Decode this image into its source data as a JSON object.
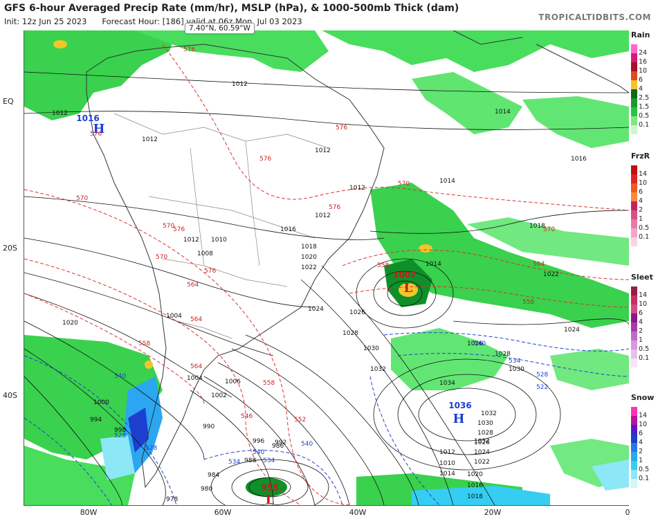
{
  "header": {
    "title": "GFS 6-hour Averaged Precip Rate (mm/hr), MSLP (hPa), & 1000-500mb Thick (dam)",
    "init": "Init: 12z Jun 25 2023",
    "forecast": "Forecast Hour: [186]  valid at 06z Mon, Jul 03 2023",
    "brand": "TROPICALTIDBITS.COM"
  },
  "cursor_tooltip": "7.40°N, 60.59°W",
  "axes": {
    "lat_labels": [
      "EQ",
      "20S",
      "40S"
    ],
    "lon_labels": [
      "80W",
      "60W",
      "40W",
      "20W",
      "0"
    ]
  },
  "pressure_centers": [
    {
      "type": "H",
      "value": "1016",
      "color": "#1a3fd6"
    },
    {
      "type": "L",
      "value": "1007",
      "color": "#d01515"
    },
    {
      "type": "H",
      "value": "1036",
      "color": "#1a3fd6"
    },
    {
      "type": "L",
      "value": "955",
      "color": "#d01515"
    }
  ],
  "isobar_labels": [
    "1012",
    "1012",
    "1012",
    "1012",
    "1012",
    "1012",
    "1012",
    "1014",
    "1014",
    "1014",
    "1016",
    "1016",
    "1018",
    "1018",
    "1020",
    "1020",
    "1022",
    "1022",
    "1024",
    "1024",
    "1026",
    "1026",
    "1028",
    "1028",
    "1030",
    "1030",
    "1032",
    "1032",
    "1034",
    "1004",
    "1008",
    "1010",
    "1004",
    "1002",
    "1006",
    "1000",
    "994",
    "990",
    "988",
    "986",
    "984",
    "980",
    "978",
    "996",
    "992",
    "998",
    "1010",
    "1012",
    "1014",
    "1016",
    "1018",
    "1020",
    "1022",
    "1024",
    "1026",
    "1028",
    "1030",
    "1032"
  ],
  "thickness_labels_red": [
    "576",
    "576",
    "576",
    "576",
    "576",
    "576",
    "570",
    "570",
    "570",
    "570",
    "570",
    "564",
    "564",
    "564",
    "564",
    "558",
    "558",
    "558",
    "558",
    "552",
    "546",
    "576"
  ],
  "thickness_labels_blue": [
    "540",
    "540",
    "540",
    "534",
    "534",
    "528",
    "528",
    "522",
    "540",
    "534",
    "528"
  ],
  "legend": {
    "rain": {
      "title": "Rain",
      "ticks": [
        "24",
        "16",
        "10",
        "6",
        "4",
        "2.5",
        "1.5",
        "0.5",
        "0.1"
      ],
      "colors": [
        "#ff66cc",
        "#d21d78",
        "#a8102a",
        "#e04a1f",
        "#f7c42a",
        "#0f6a1f",
        "#1a9a2e",
        "#27c43d",
        "#7cea7c",
        "#ccf7cc"
      ]
    },
    "frzr": {
      "title": "FrzR",
      "ticks": [
        "14",
        "10",
        "6",
        "4",
        "2",
        "1",
        "0.5",
        "0.1"
      ],
      "colors": [
        "#c01010",
        "#e02525",
        "#f05a22",
        "#f98a3a",
        "#c8245c",
        "#d8508a",
        "#e87aa8",
        "#f2a6c6",
        "#f9d2e4"
      ]
    },
    "sleet": {
      "title": "Sleet",
      "ticks": [
        "14",
        "10",
        "6",
        "4",
        "2",
        "1",
        "0.5",
        "0.1"
      ],
      "colors": [
        "#9b1c40",
        "#c4325f",
        "#d24a80",
        "#8a1a8a",
        "#a93aa9",
        "#c06ac8",
        "#d898dc",
        "#e8bfe8",
        "#f6e4f6"
      ]
    },
    "snow": {
      "title": "Snow",
      "ticks": [
        "14",
        "10",
        "6",
        "4",
        "2",
        "1",
        "0.5",
        "0.1"
      ],
      "colors": [
        "#ff33b8",
        "#b8149c",
        "#5a18c8",
        "#1d3fd0",
        "#2c76e6",
        "#2aa7f0",
        "#36cdf2",
        "#8ce7f7",
        "#d4f6fb"
      ]
    }
  }
}
